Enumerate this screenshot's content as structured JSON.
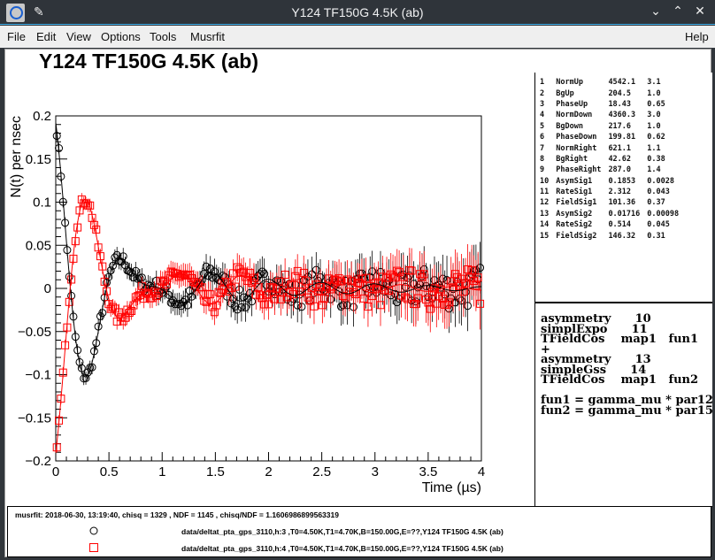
{
  "window": {
    "title": "Y124 TF150G 4.5K (ab)",
    "icons": [
      "musrfit-app-icon",
      "pin-icon",
      "minimize-icon",
      "maximize-icon",
      "close-icon"
    ]
  },
  "menu": [
    "File",
    "Edit",
    "View",
    "Options",
    "Tools",
    "Musrfit",
    "Help"
  ],
  "plot_title": "Y124 TF150G 4.5K (ab)",
  "params": [
    [
      "1",
      "NormUp",
      "4542.1",
      "3.1"
    ],
    [
      "2",
      "BgUp",
      "204.5",
      "1.0"
    ],
    [
      "3",
      "PhaseUp",
      "18.43",
      "0.65"
    ],
    [
      "4",
      "NormDown",
      "4360.3",
      "3.0"
    ],
    [
      "5",
      "BgDown",
      "217.6",
      "1.0"
    ],
    [
      "6",
      "PhaseDown",
      "199.81",
      "0.62"
    ],
    [
      "7",
      "NormRight",
      "621.1",
      "1.1"
    ],
    [
      "8",
      "BgRight",
      "42.62",
      "0.38"
    ],
    [
      "9",
      "PhaseRight",
      "287.0",
      "1.4"
    ],
    [
      "10",
      "AsymSig1",
      "0.1853",
      "0.0028"
    ],
    [
      "11",
      "RateSig1",
      "2.312",
      "0.043"
    ],
    [
      "12",
      "FieldSig1",
      "101.36",
      "0.37"
    ],
    [
      "13",
      "AsymSig2",
      "0.01716",
      "0.00098"
    ],
    [
      "14",
      "RateSig2",
      "0.514",
      "0.045"
    ],
    [
      "15",
      "FieldSig2",
      "146.32",
      "0.31"
    ]
  ],
  "theory": "asymmetry      10\nsimplExpo      11\nTFieldCos    map1   fun1\n+\nasymmetry      13\nsimpleGss      14\nTFieldCos    map1   fun2\n\nfun1 = gamma_mu * par12\nfun2 = gamma_mu * par15",
  "legend": {
    "info": "musrfit: 2018-06-30, 13:19:40, chisq = 1329 , NDF = 1145 , chisq/NDF = 1.1606986899563319",
    "entries": [
      {
        "marker": "open-circle",
        "color": "#000000",
        "label": "data/deltat_pta_gps_3110,h:3 ,T0=4.50K,T1=4.70K,B=150.00G,E=??,Y124 TF150G 4.5K (ab)"
      },
      {
        "marker": "open-square",
        "color": "#ff0000",
        "label": "data/deltat_pta_gps_3110,h:4 ,T0=4.50K,T1=4.70K,B=150.00G,E=??,Y124 TF150G 4.5K (ab)"
      }
    ]
  },
  "chart_data": {
    "type": "scatter",
    "xlabel": "Time (µs)",
    "ylabel": "N(t) per nsec",
    "xlim": [
      0,
      4
    ],
    "ylim": [
      -0.2,
      0.2
    ],
    "xticks": [
      "0",
      "0.5",
      "1",
      "1.5",
      "2",
      "2.5",
      "3",
      "3.5",
      "4"
    ],
    "yticks": [
      "−0.2",
      "−0.15",
      "−0.1",
      "−0.05",
      "0",
      "0.05",
      "0.1",
      "0.15",
      "0.2"
    ],
    "grid": false,
    "series": [
      {
        "name": "data/deltat_pta_gps_3110,h:3",
        "color": "#000000",
        "marker": "open-circle",
        "phase_deg": 18.43,
        "fit_line": true
      },
      {
        "name": "data/deltat_pta_gps_3110,h:4",
        "color": "#ff0000",
        "marker": "open-square",
        "phase_deg": 199.81,
        "fit_line": true
      }
    ],
    "model": {
      "asym1": 0.1853,
      "rate1": 2.312,
      "field1_G": 101.36,
      "asym2": 0.01716,
      "rate2": 0.514,
      "field2_G": 146.32
    }
  }
}
